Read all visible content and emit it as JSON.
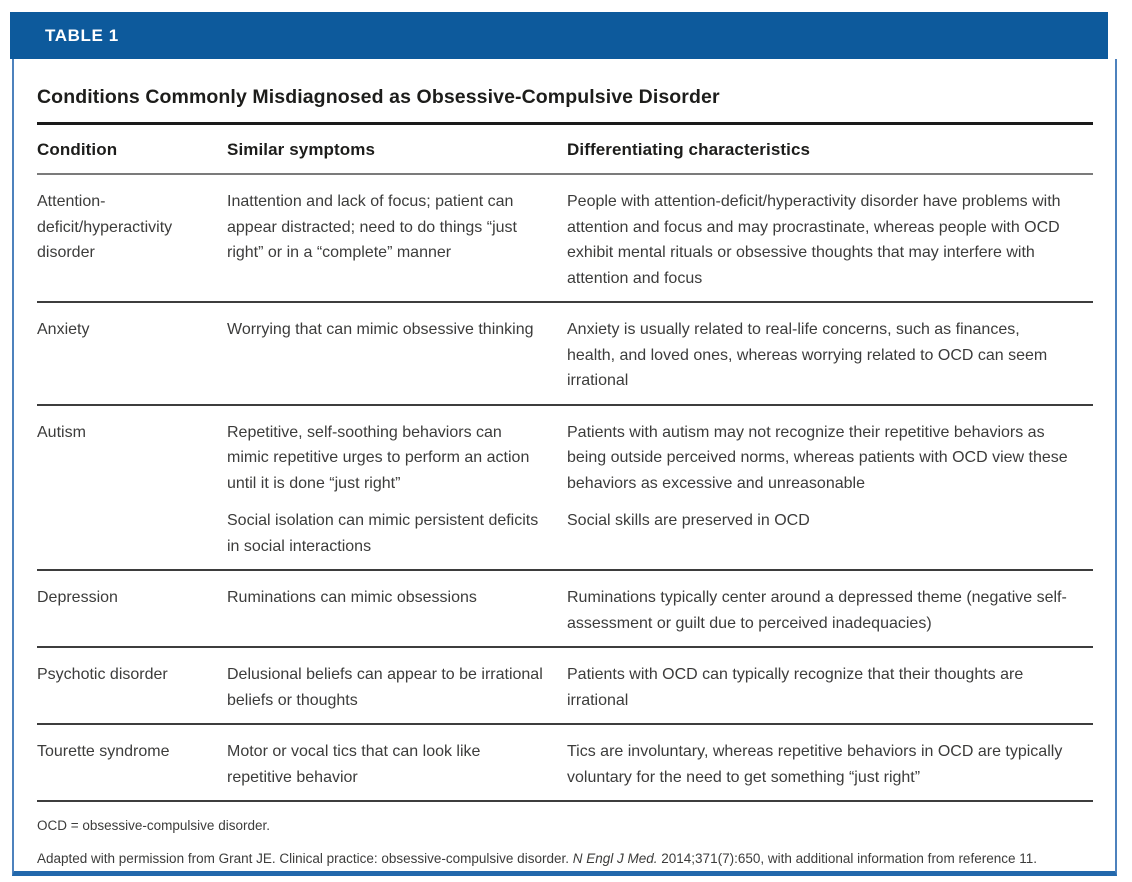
{
  "colors": {
    "bar_blue": "#0d5a9c",
    "border_blue": "#4d82bd",
    "bottom_rule_blue": "#2268ac",
    "title_text": "#1d1d1b",
    "body_text": "#3c3c3b",
    "header_rule_gray": "#7b7b7b",
    "row_rule": "#3d3d3d"
  },
  "header": {
    "label": "TABLE 1"
  },
  "title": "Conditions Commonly Misdiagnosed as Obsessive-Compulsive Disorder",
  "table": {
    "columns": [
      "Condition",
      "Similar symptoms",
      "Differentiating characteristics"
    ],
    "rows": [
      {
        "condition": "Attention-deficit/hyperactivity disorder",
        "symptoms": [
          "Inattention and lack of focus; patient can appear distracted; need to do things “just right” or in a “complete” manner"
        ],
        "differentiating": [
          "People with attention-deficit/hyperactivity disorder have problems with attention and focus and may procrastinate, whereas people with OCD exhibit mental rituals or obsessive thoughts that may interfere with attention and focus"
        ]
      },
      {
        "condition": "Anxiety",
        "symptoms": [
          "Worrying that can mimic obsessive thinking"
        ],
        "differentiating": [
          "Anxiety is usually related to real-life concerns, such as finances, health, and loved ones, whereas worrying related to OCD can seem irrational"
        ]
      },
      {
        "condition": "Autism",
        "symptoms": [
          "Repetitive, self-soothing behaviors can mimic repetitive urges to perform an action until it is done “just right”",
          "Social isolation can mimic persistent deficits in social interactions"
        ],
        "differentiating": [
          "Patients with autism may not recognize their repetitive behaviors as being outside perceived norms, whereas patients with OCD view these behaviors as excessive and unreasonable",
          "Social skills are preserved in OCD"
        ]
      },
      {
        "condition": "Depression",
        "symptoms": [
          "Ruminations can mimic obsessions"
        ],
        "differentiating": [
          "Ruminations typically center around a depressed theme (negative self- assessment or guilt due to perceived inadequacies)"
        ]
      },
      {
        "condition": "Psychotic disorder",
        "symptoms": [
          "Delusional beliefs can appear to be irrational beliefs or thoughts"
        ],
        "differentiating": [
          "Patients with OCD can typically recognize that their thoughts are irrational"
        ]
      },
      {
        "condition": "Tourette syndrome",
        "symptoms": [
          "Motor or vocal tics that can look like repetitive behavior"
        ],
        "differentiating": [
          "Tics are involuntary, whereas repetitive behaviors in OCD are typically voluntary for the need to get something “just right”"
        ]
      }
    ]
  },
  "footnotes": {
    "abbreviation": "OCD = obsessive-compulsive disorder.",
    "source_before": "Adapted with permission from Grant JE. Clinical practice: obsessive-compulsive disorder. ",
    "source_italic": "N Engl J Med.",
    "source_after": " 2014;371(7):650, with additional information from reference 11."
  }
}
